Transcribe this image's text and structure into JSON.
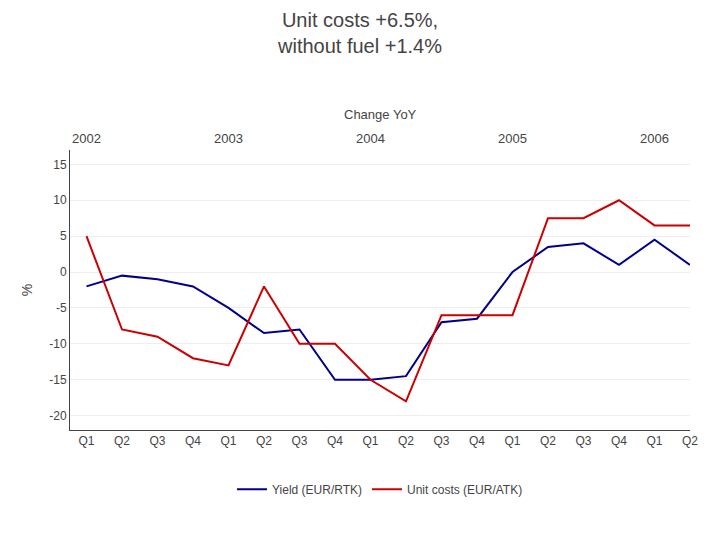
{
  "chart_data": {
    "type": "line",
    "title": "Unit costs +6.5%,\nwithout fuel +1.4%",
    "subtitle": "Change YoY",
    "ylabel": "%",
    "categories": [
      "Q1",
      "Q2",
      "Q3",
      "Q4",
      "Q1",
      "Q2",
      "Q3",
      "Q4",
      "Q1",
      "Q2",
      "Q3",
      "Q4",
      "Q1",
      "Q2",
      "Q3",
      "Q4",
      "Q1",
      "Q2"
    ],
    "series": [
      {
        "name": "Yield (EUR/RTK)",
        "color": "#00008B",
        "values": [
          -2,
          -0.5,
          -1,
          -2,
          -5,
          -8.5,
          -8,
          -15,
          -15,
          -14.5,
          -7,
          -6.5,
          0,
          3.5,
          4,
          1,
          4.5,
          1
        ]
      },
      {
        "name": "Unit costs (EUR/ATK)",
        "color": "#CC0000",
        "values": [
          5,
          -8,
          -9,
          -12,
          -13,
          -2,
          -10,
          -10,
          -15,
          -18,
          -6,
          -6,
          -6,
          7.5,
          7.5,
          10,
          6.5,
          6.5
        ]
      }
    ],
    "annotations": [
      {
        "text": "2002",
        "x": 0
      },
      {
        "text": "2003",
        "x": 4
      },
      {
        "text": "2004",
        "x": 8
      },
      {
        "text": "2005",
        "x": 12
      },
      {
        "text": "2006",
        "x": 16
      }
    ],
    "ylim": [
      -22,
      17
    ],
    "yticks": [
      -20,
      -15,
      -10,
      -5,
      0,
      5,
      10,
      15
    ],
    "grid": true,
    "legend": "bottom"
  }
}
